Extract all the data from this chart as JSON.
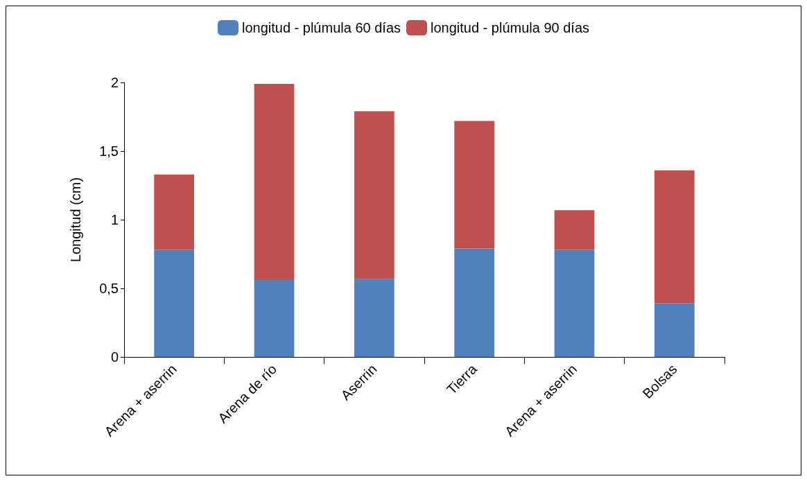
{
  "chart_data": {
    "type": "bar",
    "stacked": true,
    "ylabel": "Longitud (cm)",
    "categories": [
      "Arena + aserrin",
      "Arena de río",
      "Aserrin",
      "Tierra",
      "Arena + aserrin",
      "Bolsas"
    ],
    "series": [
      {
        "name": "longitud - plúmula 60 días",
        "color": "#4f81bd",
        "values": [
          0.78,
          0.56,
          0.57,
          0.79,
          0.78,
          0.39
        ]
      },
      {
        "name": "longitud - plúmula 90 días",
        "color": "#c0504d",
        "values": [
          0.55,
          1.43,
          1.22,
          0.93,
          0.29,
          0.97
        ]
      }
    ],
    "ylim": [
      0,
      2
    ],
    "yticks": [
      0,
      {
        "value": 0.5,
        "label": "0,5"
      },
      1,
      {
        "value": 1.5,
        "label": "1,5"
      },
      2
    ],
    "grid": false,
    "legend": "top"
  }
}
